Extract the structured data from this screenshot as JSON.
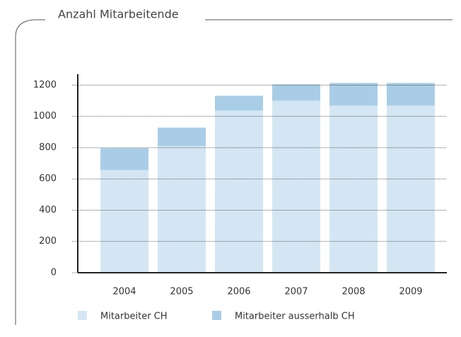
{
  "chart_data": {
    "type": "stacked_bar",
    "title": "Anzahl Mitarbeitende",
    "categories": [
      "2004",
      "2005",
      "2006",
      "2007",
      "2008",
      "2009"
    ],
    "series": [
      {
        "name": "Mitarbeiter CH",
        "color": "#d4e6f3",
        "values": [
          657,
          811,
          1037,
          1100,
          1069,
          1069
        ]
      },
      {
        "name": "Mitarbeiter ausserhalb CH",
        "color": "#a9cde7",
        "values": [
          140,
          117,
          95,
          105,
          145,
          145
        ]
      }
    ],
    "ylim": [
      0,
      1270
    ],
    "yticks": [
      0,
      200,
      400,
      600,
      800,
      1000,
      1200
    ],
    "grid": true
  }
}
